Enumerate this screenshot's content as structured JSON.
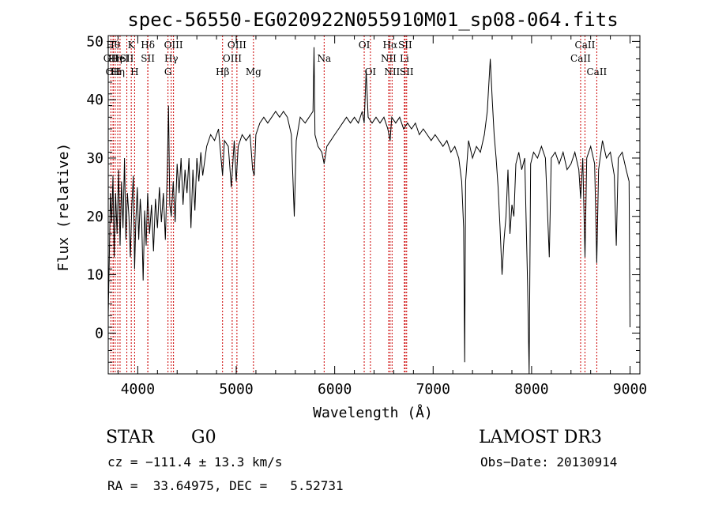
{
  "chart_data": {
    "type": "line",
    "title": "spec-56550-EG020922N055910M01_sp08-064.fits",
    "xlabel": "Wavelength (Å)",
    "ylabel": "Flux (relative)",
    "xlim": [
      3700,
      9100
    ],
    "ylim": [
      -7,
      51
    ],
    "xticks": [
      4000,
      5000,
      6000,
      7000,
      8000,
      9000
    ],
    "yticks": [
      0,
      10,
      20,
      30,
      40,
      50
    ],
    "grid": false,
    "series": [
      {
        "points": [
          [
            3700,
            3
          ],
          [
            3712,
            14
          ],
          [
            3722,
            24
          ],
          [
            3735,
            19
          ],
          [
            3748,
            27
          ],
          [
            3760,
            13
          ],
          [
            3775,
            24
          ],
          [
            3790,
            17
          ],
          [
            3805,
            28
          ],
          [
            3820,
            15
          ],
          [
            3835,
            26
          ],
          [
            3850,
            18
          ],
          [
            3865,
            30
          ],
          [
            3880,
            16
          ],
          [
            3895,
            24
          ],
          [
            3910,
            20
          ],
          [
            3925,
            13
          ],
          [
            3940,
            22
          ],
          [
            3955,
            27
          ],
          [
            3968,
            11
          ],
          [
            3980,
            19
          ],
          [
            3995,
            25
          ],
          [
            4010,
            16
          ],
          [
            4025,
            23
          ],
          [
            4040,
            19
          ],
          [
            4055,
            9
          ],
          [
            4070,
            21
          ],
          [
            4085,
            15
          ],
          [
            4100,
            24
          ],
          [
            4120,
            17
          ],
          [
            4140,
            22
          ],
          [
            4160,
            14
          ],
          [
            4180,
            23
          ],
          [
            4200,
            18
          ],
          [
            4220,
            25
          ],
          [
            4240,
            19
          ],
          [
            4260,
            24
          ],
          [
            4280,
            16
          ],
          [
            4300,
            28
          ],
          [
            4312,
            39
          ],
          [
            4325,
            22
          ],
          [
            4340,
            20
          ],
          [
            4360,
            26
          ],
          [
            4380,
            19
          ],
          [
            4400,
            29
          ],
          [
            4420,
            24
          ],
          [
            4440,
            30
          ],
          [
            4460,
            22
          ],
          [
            4480,
            28
          ],
          [
            4500,
            24
          ],
          [
            4520,
            30
          ],
          [
            4540,
            18
          ],
          [
            4560,
            28
          ],
          [
            4580,
            21
          ],
          [
            4600,
            30
          ],
          [
            4620,
            26
          ],
          [
            4640,
            31
          ],
          [
            4660,
            27
          ],
          [
            4700,
            32
          ],
          [
            4740,
            34
          ],
          [
            4780,
            33
          ],
          [
            4820,
            35
          ],
          [
            4861,
            27
          ],
          [
            4880,
            33
          ],
          [
            4920,
            32
          ],
          [
            4950,
            25
          ],
          [
            4980,
            33
          ],
          [
            5000,
            26
          ],
          [
            5020,
            32
          ],
          [
            5060,
            34
          ],
          [
            5100,
            33
          ],
          [
            5140,
            34
          ],
          [
            5167,
            28
          ],
          [
            5183,
            27
          ],
          [
            5200,
            34
          ],
          [
            5240,
            36
          ],
          [
            5280,
            37
          ],
          [
            5320,
            36
          ],
          [
            5360,
            37
          ],
          [
            5400,
            38
          ],
          [
            5440,
            37
          ],
          [
            5480,
            38
          ],
          [
            5520,
            37
          ],
          [
            5560,
            34
          ],
          [
            5590,
            20
          ],
          [
            5610,
            33
          ],
          [
            5650,
            37
          ],
          [
            5700,
            36
          ],
          [
            5740,
            37
          ],
          [
            5780,
            38
          ],
          [
            5790,
            49
          ],
          [
            5800,
            34
          ],
          [
            5830,
            32
          ],
          [
            5870,
            31
          ],
          [
            5893,
            29
          ],
          [
            5920,
            32
          ],
          [
            5960,
            33
          ],
          [
            6000,
            34
          ],
          [
            6040,
            35
          ],
          [
            6080,
            36
          ],
          [
            6120,
            37
          ],
          [
            6160,
            36
          ],
          [
            6200,
            37
          ],
          [
            6240,
            36
          ],
          [
            6280,
            38
          ],
          [
            6300,
            36
          ],
          [
            6320,
            45
          ],
          [
            6340,
            37
          ],
          [
            6380,
            36
          ],
          [
            6420,
            37
          ],
          [
            6460,
            36
          ],
          [
            6500,
            37
          ],
          [
            6540,
            35
          ],
          [
            6563,
            33
          ],
          [
            6580,
            37
          ],
          [
            6620,
            36
          ],
          [
            6660,
            37
          ],
          [
            6700,
            35
          ],
          [
            6740,
            36
          ],
          [
            6780,
            35
          ],
          [
            6820,
            36
          ],
          [
            6860,
            34
          ],
          [
            6900,
            35
          ],
          [
            6940,
            34
          ],
          [
            6980,
            33
          ],
          [
            7020,
            34
          ],
          [
            7060,
            33
          ],
          [
            7100,
            32
          ],
          [
            7140,
            33
          ],
          [
            7180,
            31
          ],
          [
            7220,
            32
          ],
          [
            7260,
            30
          ],
          [
            7290,
            26
          ],
          [
            7310,
            18
          ],
          [
            7320,
            -5
          ],
          [
            7330,
            26
          ],
          [
            7360,
            33
          ],
          [
            7400,
            30
          ],
          [
            7440,
            32
          ],
          [
            7480,
            31
          ],
          [
            7520,
            34
          ],
          [
            7550,
            38
          ],
          [
            7580,
            47
          ],
          [
            7600,
            40
          ],
          [
            7620,
            34
          ],
          [
            7640,
            30
          ],
          [
            7660,
            25
          ],
          [
            7680,
            18
          ],
          [
            7700,
            10
          ],
          [
            7720,
            16
          ],
          [
            7740,
            20
          ],
          [
            7760,
            28
          ],
          [
            7780,
            17
          ],
          [
            7800,
            22
          ],
          [
            7820,
            20
          ],
          [
            7840,
            29
          ],
          [
            7870,
            31
          ],
          [
            7900,
            28
          ],
          [
            7930,
            30
          ],
          [
            7960,
            8
          ],
          [
            7975,
            -7
          ],
          [
            7990,
            29
          ],
          [
            8020,
            31
          ],
          [
            8060,
            30
          ],
          [
            8100,
            32
          ],
          [
            8140,
            30
          ],
          [
            8180,
            13
          ],
          [
            8200,
            30
          ],
          [
            8240,
            31
          ],
          [
            8280,
            29
          ],
          [
            8320,
            31
          ],
          [
            8360,
            28
          ],
          [
            8400,
            29
          ],
          [
            8440,
            31
          ],
          [
            8480,
            28
          ],
          [
            8498,
            23
          ],
          [
            8520,
            30
          ],
          [
            8542,
            13
          ],
          [
            8560,
            30
          ],
          [
            8600,
            32
          ],
          [
            8640,
            29
          ],
          [
            8662,
            12
          ],
          [
            8680,
            28
          ],
          [
            8720,
            33
          ],
          [
            8760,
            30
          ],
          [
            8800,
            31
          ],
          [
            8840,
            27
          ],
          [
            8860,
            15
          ],
          [
            8880,
            30
          ],
          [
            8920,
            31
          ],
          [
            8960,
            28
          ],
          [
            8990,
            26
          ],
          [
            9000,
            1
          ]
        ]
      }
    ],
    "line_marks": [
      {
        "x": 3727,
        "row": 1,
        "label": "OII"
      },
      {
        "x": 3750,
        "row": 0,
        "label": "Hθ"
      },
      {
        "x": 3750,
        "row": 2,
        "label": "OII"
      },
      {
        "x": 3771,
        "row": 1,
        "label": "Hη"
      },
      {
        "x": 3797,
        "row": 2,
        "label": "Hη"
      },
      {
        "x": 3820,
        "row": 1,
        "label": "HeI"
      },
      {
        "x": 3889,
        "row": 1,
        "label": "SII"
      },
      {
        "x": 3934,
        "row": 0,
        "label": "K"
      },
      {
        "x": 3968,
        "row": 2,
        "label": "H"
      },
      {
        "x": 4102,
        "row": 0,
        "label": "Hδ"
      },
      {
        "x": 4102,
        "row": 1,
        "label": "SII"
      },
      {
        "x": 4307,
        "row": 2,
        "label": "G"
      },
      {
        "x": 4340,
        "row": 1,
        "label": "Hγ"
      },
      {
        "x": 4363,
        "row": 0,
        "label": "OIII"
      },
      {
        "x": 4861,
        "row": 2,
        "label": "Hβ"
      },
      {
        "x": 4959,
        "row": 1,
        "label": "OIII"
      },
      {
        "x": 5007,
        "row": 0,
        "label": "OIII"
      },
      {
        "x": 5175,
        "row": 2,
        "label": "Mg"
      },
      {
        "x": 5893,
        "row": 1,
        "label": "Na"
      },
      {
        "x": 6300,
        "row": 0,
        "label": "OI"
      },
      {
        "x": 6363,
        "row": 2,
        "label": "OI"
      },
      {
        "x": 6548,
        "row": 1,
        "label": "NII"
      },
      {
        "x": 6563,
        "row": 0,
        "label": "Hα"
      },
      {
        "x": 6583,
        "row": 2,
        "label": "NII"
      },
      {
        "x": 6708,
        "row": 1,
        "label": "Li"
      },
      {
        "x": 6716,
        "row": 0,
        "label": "SII"
      },
      {
        "x": 6731,
        "row": 2,
        "label": "SII"
      },
      {
        "x": 8498,
        "row": 1,
        "label": "CaII"
      },
      {
        "x": 8542,
        "row": 0,
        "label": "CaII"
      },
      {
        "x": 8662,
        "row": 2,
        "label": "CaII"
      }
    ],
    "annotations": {
      "object_type": "STAR",
      "subclass": "G0",
      "survey": "LAMOST DR3",
      "velocity": "cz = −111.4 ± 13.3 km/s",
      "obs_date": "Obs−Date: 20130914",
      "coords": "RA =  33.64975, DEC =   5.52731"
    },
    "colors": {
      "spectrum": "#000000",
      "marker": "#cc0000",
      "axes": "#000000",
      "background": "#ffffff"
    }
  }
}
